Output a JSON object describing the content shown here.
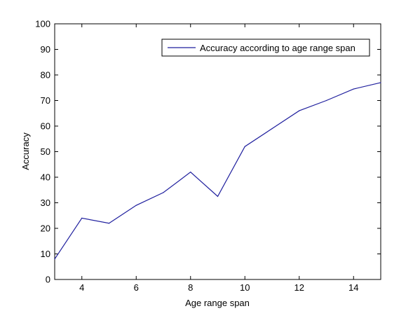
{
  "chart_data": {
    "type": "line",
    "xlabel": "Age range span",
    "ylabel": "Accuracy",
    "xlim": [
      3,
      15
    ],
    "ylim": [
      0,
      100
    ],
    "x_ticks": [
      4,
      6,
      8,
      10,
      12,
      14
    ],
    "y_ticks": [
      0,
      10,
      20,
      30,
      40,
      50,
      60,
      70,
      80,
      90,
      100
    ],
    "grid": false,
    "legend_position": "top-right",
    "series": [
      {
        "name": "Accuracy according to age range span",
        "color": "#1f1f9e",
        "x": [
          3,
          4,
          5,
          6,
          7,
          8,
          9,
          10,
          11,
          12,
          13,
          14,
          15
        ],
        "y": [
          8,
          24,
          22,
          29,
          34,
          42,
          32.5,
          52,
          59,
          66,
          70,
          74.5,
          77
        ]
      }
    ]
  }
}
